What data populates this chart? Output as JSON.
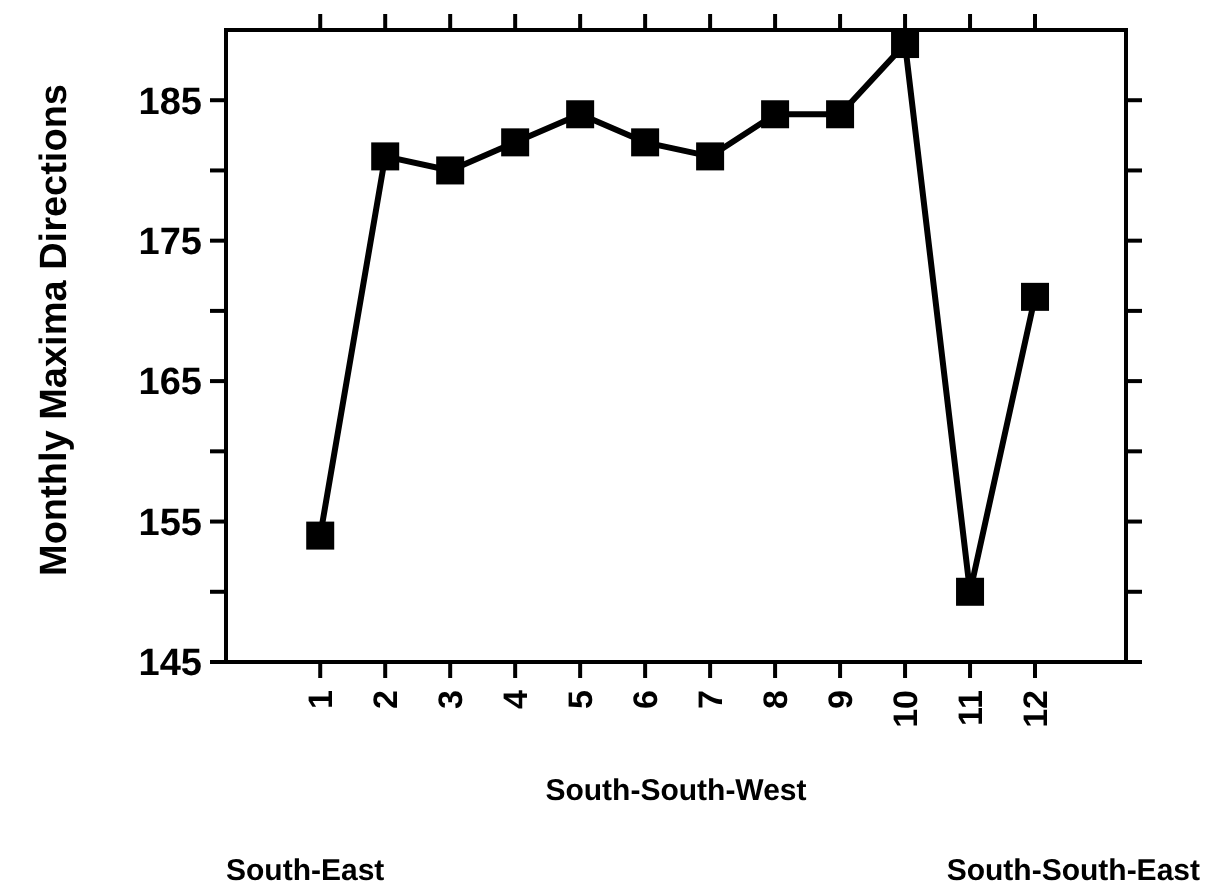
{
  "chart_data": {
    "type": "line",
    "ylabel": "Monthly Maxima Directions",
    "xlabel": "South-South-West",
    "annotations": [
      "South-East",
      "South-South-East"
    ],
    "x": [
      1,
      2,
      3,
      4,
      5,
      6,
      7,
      8,
      9,
      10,
      11,
      12
    ],
    "series": [
      {
        "color": "#000000",
        "values": [
          154,
          181,
          180,
          182,
          184,
          182,
          181,
          184,
          184,
          189,
          150,
          171
        ]
      }
    ],
    "xlim": [
      -0.45,
      13.4
    ],
    "xticks": [
      1,
      2,
      3,
      4,
      5,
      6,
      7,
      8,
      9,
      10,
      11,
      12
    ],
    "ylim": [
      145,
      190
    ],
    "yticks": [
      145,
      {
        "value": 150,
        "label": null
      },
      155,
      {
        "value": 160,
        "label": null
      },
      165,
      {
        "value": 170,
        "label": null
      },
      175,
      {
        "value": 180,
        "label": null
      },
      185
    ],
    "grid": false,
    "marker": "square",
    "line_style": "solid"
  }
}
